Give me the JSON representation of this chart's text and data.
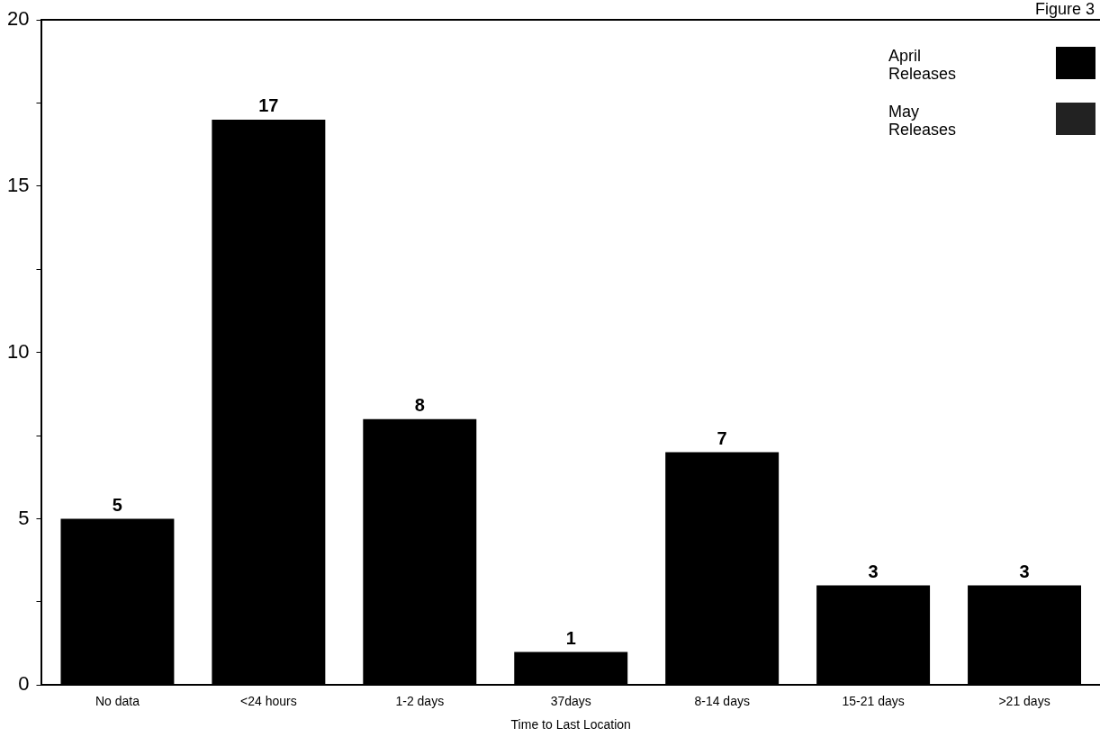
{
  "chart_data": {
    "type": "bar",
    "xlabel": "Time to Last Location",
    "categories": [
      "No data",
      "<24 hours",
      "1-2 days",
      "37days",
      "8-14 days",
      "15-21 days",
      ">21 days"
    ],
    "series": [
      {
        "name": "April Releases",
        "color": "#000000",
        "values": [
          5,
          17,
          8,
          1,
          7,
          3,
          3
        ]
      },
      {
        "name": "May Releases",
        "color": "#222222",
        "values": [
          null,
          null,
          null,
          null,
          null,
          null,
          null
        ]
      }
    ],
    "stacked": true,
    "data_labels": true,
    "ylim": [
      0,
      20
    ],
    "yticks": [
      0,
      {
        "value": 2.5,
        "label": null
      },
      5,
      {
        "value": 7.5,
        "label": null
      },
      10,
      {
        "value": 12.5,
        "label": null
      },
      15,
      {
        "value": 17.5,
        "label": null
      },
      20
    ],
    "grid": false,
    "legend": "top right",
    "annotations": [
      "Figure 3"
    ]
  }
}
